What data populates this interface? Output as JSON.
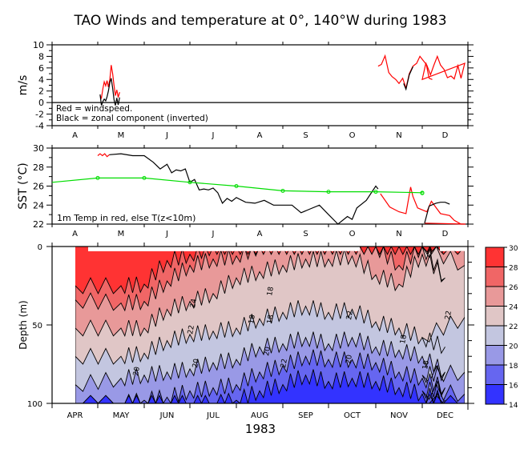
{
  "title": "TAO Winds and temperature at 0°, 140°W during 1983",
  "chart_data": [
    {
      "type": "line",
      "panel": "winds",
      "ylabel": "m/s",
      "ylim": [
        -4,
        10
      ],
      "yticks": [
        -4,
        -2,
        0,
        2,
        4,
        6,
        8,
        10
      ],
      "xlim_months": [
        3,
        12.6
      ],
      "x_tick_labels": [
        "A",
        "M",
        "J",
        "J",
        "A",
        "S",
        "O",
        "N",
        "D"
      ],
      "annotations": [
        "Red = windspeed.",
        "Black = zonal component (inverted)"
      ],
      "series": [
        {
          "name": "windspeed",
          "color": "#ff0000",
          "x_month": [
            4.05,
            4.08,
            4.11,
            4.14,
            4.17,
            4.2,
            4.23,
            4.26,
            4.29,
            4.32,
            4.35,
            4.38,
            4.41,
            4.44,
            4.47
          ],
          "values": [
            1.2,
            0.8,
            2.4,
            3.6,
            2.9,
            3.8,
            2.7,
            4.0,
            6.5,
            5.0,
            3.0,
            1.2,
            2.2,
            0.9,
            1.8
          ]
        },
        {
          "name": "zonal-inverted",
          "color": "#000000",
          "x_month": [
            4.05,
            4.08,
            4.11,
            4.14,
            4.17,
            4.2,
            4.23,
            4.26,
            4.29,
            4.32,
            4.35,
            4.38,
            4.41,
            4.44,
            4.47
          ],
          "values": [
            1.4,
            -0.5,
            0.2,
            0.6,
            0.3,
            1.0,
            2.0,
            3.5,
            4.2,
            2.5,
            0.5,
            -0.5,
            0.8,
            -0.4,
            0.9
          ]
        },
        {
          "name": "windspeed-late",
          "color": "#ff0000",
          "x_month": [
            10.05,
            10.12,
            10.2,
            10.28,
            10.35,
            10.43,
            10.5,
            10.58,
            10.65,
            10.72,
            10.8,
            10.88,
            10.95,
            11.03,
            11.1,
            11.18,
            11.25,
            11.33,
            11.4,
            11.48,
            11.55,
            11.63,
            11.7,
            11.78,
            11.85,
            11.93,
            12.0,
            12.08,
            12.15,
            12.22
          ],
          "values": [
            6.3,
            6.6,
            8.1,
            5.2,
            4.5,
            4.0,
            3.3,
            4.2,
            2.5,
            5.0,
            6.3,
            6.8,
            8.0,
            7.2,
            6.5,
            4.8,
            6.4,
            8.0,
            6.5,
            5.7,
            4.3,
            4.6,
            4.1,
            6.4,
            4.2,
            6.8,
            4.0,
            6.9,
            4.2,
            4.0
          ]
        },
        {
          "name": "zonal-inverted-late",
          "color": "#000000",
          "x_month": [
            10.6,
            10.65,
            10.72,
            10.8
          ],
          "values": [
            3.3,
            2.3,
            4.8,
            6.2
          ]
        }
      ]
    },
    {
      "type": "line",
      "panel": "sst",
      "ylabel": "SST (°C)",
      "ylim": [
        22,
        30
      ],
      "yticks": [
        22,
        24,
        26,
        28,
        30
      ],
      "x_tick_labels": [
        "A",
        "M",
        "J",
        "J",
        "A",
        "S",
        "O",
        "N",
        "D"
      ],
      "annotations": [
        "1m Temp in red, else T(z<10m)"
      ],
      "series": [
        {
          "name": "1m-temp-early",
          "color": "#ff0000",
          "x_month": [
            4.0,
            4.05,
            4.1,
            4.15,
            4.2,
            4.25
          ],
          "values": [
            29.2,
            29.4,
            29.2,
            29.4,
            29.1,
            29.3
          ]
        },
        {
          "name": "T(z<10m)",
          "color": "#000000",
          "x_month": [
            4.25,
            4.5,
            4.75,
            5.0,
            5.2,
            5.35,
            5.5,
            5.6,
            5.7,
            5.8,
            5.9,
            6.0,
            6.1,
            6.2,
            6.3,
            6.4,
            6.5,
            6.6,
            6.7,
            6.8,
            6.9,
            7.0,
            7.2,
            7.4,
            7.6,
            7.8,
            8.0,
            8.2,
            8.4,
            8.6,
            8.8,
            9.0,
            9.2,
            9.4,
            9.5,
            9.6,
            9.8,
            10.0,
            10.05
          ],
          "values": [
            29.3,
            29.4,
            29.2,
            29.2,
            28.5,
            27.8,
            28.3,
            27.4,
            27.7,
            27.6,
            27.8,
            26.4,
            26.7,
            25.6,
            25.7,
            25.6,
            25.8,
            25.3,
            24.2,
            24.7,
            24.4,
            24.8,
            24.3,
            24.2,
            24.5,
            24.0,
            24.0,
            24.0,
            23.2,
            23.6,
            24.0,
            23.0,
            22.0,
            22.8,
            22.5,
            23.7,
            24.5,
            26.0,
            25.7
          ]
        },
        {
          "name": "1m-temp-late",
          "color": "#ff0000",
          "x_month": [
            10.1,
            10.3,
            10.5,
            10.65,
            10.75,
            10.8,
            10.9,
            11.1,
            11.2,
            11.4,
            11.6,
            11.7,
            11.85,
            11.95,
            12.05
          ],
          "values": [
            25.2,
            23.8,
            23.3,
            23.1,
            25.9,
            24.9,
            23.7,
            23.3,
            24.4,
            23.1,
            22.9,
            22.4,
            22.0,
            22.0,
            22.1
          ]
        },
        {
          "name": "T(z<10m)-dec",
          "color": "#000000",
          "x_month": [
            12.05,
            12.15,
            12.2,
            12.3,
            12.4,
            12.5,
            12.6
          ],
          "values": [
            22.1,
            23.9,
            24.0,
            24.2,
            24.3,
            24.3,
            24.1
          ]
        },
        {
          "name": "climatology",
          "color": "#00dd00",
          "markers": true,
          "x_month": [
            3.5,
            4.0,
            5.0,
            6.0,
            7.0,
            8.0,
            9.0,
            10.0,
            11.0,
            12.0
          ],
          "values": [
            26.4,
            26.85,
            26.85,
            26.4,
            26.0,
            25.5,
            25.4,
            25.4,
            25.3,
            25.25
          ]
        }
      ]
    },
    {
      "type": "heatmap",
      "panel": "depth-temperature",
      "ylabel": "Depth (m)",
      "xlabel": "1983",
      "ylim": [
        100,
        0
      ],
      "yticks": [
        0,
        50,
        100
      ],
      "x_tick_labels": [
        "APR",
        "MAY",
        "JUN",
        "JUL",
        "AUG",
        "SEP",
        "OCT",
        "NOV",
        "DEC"
      ],
      "contour_levels": [
        14,
        16,
        18,
        20,
        22,
        24,
        26,
        28,
        30
      ],
      "contour_labels": [
        "24",
        "22",
        "20",
        "20",
        "20",
        "18",
        "18",
        "22",
        "20",
        "18",
        "22",
        "18",
        "22",
        "18"
      ],
      "colorbar": {
        "levels": [
          14,
          16,
          18,
          20,
          22,
          24,
          26,
          28,
          30
        ],
        "colors": [
          "#3333ff",
          "#6666f0",
          "#9999e6",
          "#c3c6e0",
          "#e0c6c6",
          "#e89999",
          "#f06666",
          "#ff3333"
        ]
      },
      "isotherm_depth_m": {
        "x_month": [
          4.0,
          4.5,
          5.0,
          5.5,
          6.0,
          6.5,
          7.0,
          7.5,
          8.0,
          8.5,
          9.0,
          9.5,
          10.0,
          10.5,
          11.0,
          11.5,
          12.0,
          12.5
        ],
        "T28": [
          25,
          25,
          24,
          9,
          5,
          0,
          0,
          0,
          0,
          0,
          0,
          0,
          0,
          0,
          0,
          0,
          0,
          0
        ],
        "T26": [
          34,
          36,
          35,
          22,
          12,
          8,
          6,
          0,
          0,
          0,
          0,
          0,
          0,
          12,
          0,
          10,
          0,
          0
        ],
        "T24": [
          52,
          52,
          52,
          40,
          35,
          30,
          20,
          16,
          12,
          8,
          8,
          6,
          18,
          24,
          5,
          20,
          0,
          12
        ],
        "T22": [
          70,
          70,
          68,
          60,
          56,
          54,
          52,
          46,
          42,
          38,
          42,
          40,
          48,
          52,
          58,
          64,
          58,
          45
        ],
        "T20": [
          88,
          84,
          82,
          80,
          78,
          74,
          72,
          64,
          62,
          58,
          62,
          58,
          64,
          66,
          70,
          80,
          82,
          80
        ],
        "T18": [
          100,
          100,
          98,
          96,
          92,
          90,
          88,
          80,
          76,
          70,
          72,
          72,
          74,
          80,
          84,
          90,
          92,
          94
        ],
        "T16": [
          100,
          100,
          100,
          100,
          100,
          100,
          98,
          92,
          88,
          82,
          86,
          84,
          86,
          90,
          94,
          98,
          100,
          100
        ]
      }
    }
  ]
}
